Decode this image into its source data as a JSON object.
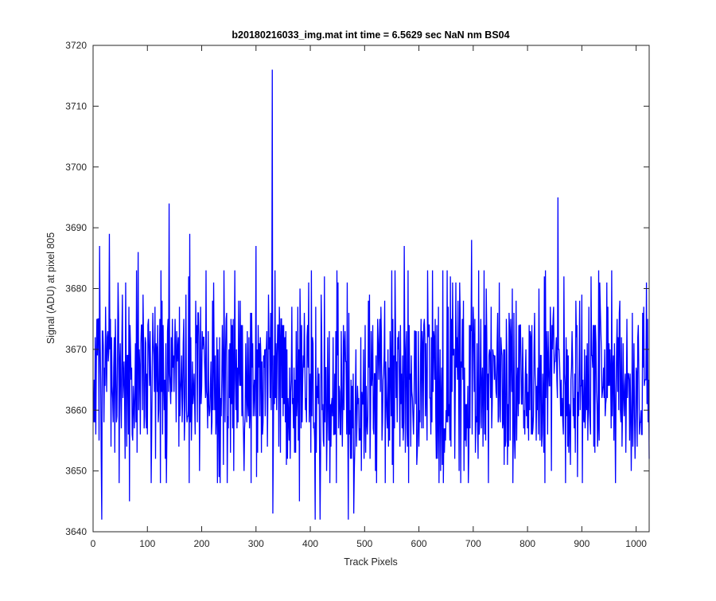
{
  "chart_data": {
    "type": "line",
    "title": "b20180216033_img.mat int time = 6.5629 sec  NaN nm BS04",
    "xlabel": "Track Pixels",
    "ylabel": "Signal (ADU) at pixel 805",
    "xlim": [
      0,
      1024
    ],
    "ylim": [
      3640,
      3720
    ],
    "xticks": [
      0,
      100,
      200,
      300,
      400,
      500,
      600,
      700,
      800,
      900,
      1000
    ],
    "yticks": [
      3640,
      3650,
      3660,
      3670,
      3680,
      3690,
      3700,
      3710,
      3720
    ],
    "grid": false,
    "line_color": "#0000ff",
    "series": [
      {
        "x_start": 1,
        "x_step": 1,
        "peaks": [
          {
            "x": 330,
            "y": 3716
          },
          {
            "x": 140,
            "y": 3694
          },
          {
            "x": 856,
            "y": 3695
          },
          {
            "x": 30,
            "y": 3689
          },
          {
            "x": 178,
            "y": 3689
          },
          {
            "x": 697,
            "y": 3688
          },
          {
            "x": 573,
            "y": 3687
          },
          {
            "x": 12,
            "y": 3687
          },
          {
            "x": 300,
            "y": 3687
          },
          {
            "x": 83,
            "y": 3686
          }
        ],
        "troughs": [
          {
            "x": 16,
            "y": 3642
          },
          {
            "x": 409,
            "y": 3642
          },
          {
            "x": 418,
            "y": 3642
          },
          {
            "x": 470,
            "y": 3642
          },
          {
            "x": 480,
            "y": 3643
          },
          {
            "x": 331,
            "y": 3643
          },
          {
            "x": 67,
            "y": 3645
          },
          {
            "x": 380,
            "y": 3645
          }
        ],
        "baseline": 3665,
        "typical_range": [
          3650,
          3680
        ]
      }
    ]
  }
}
